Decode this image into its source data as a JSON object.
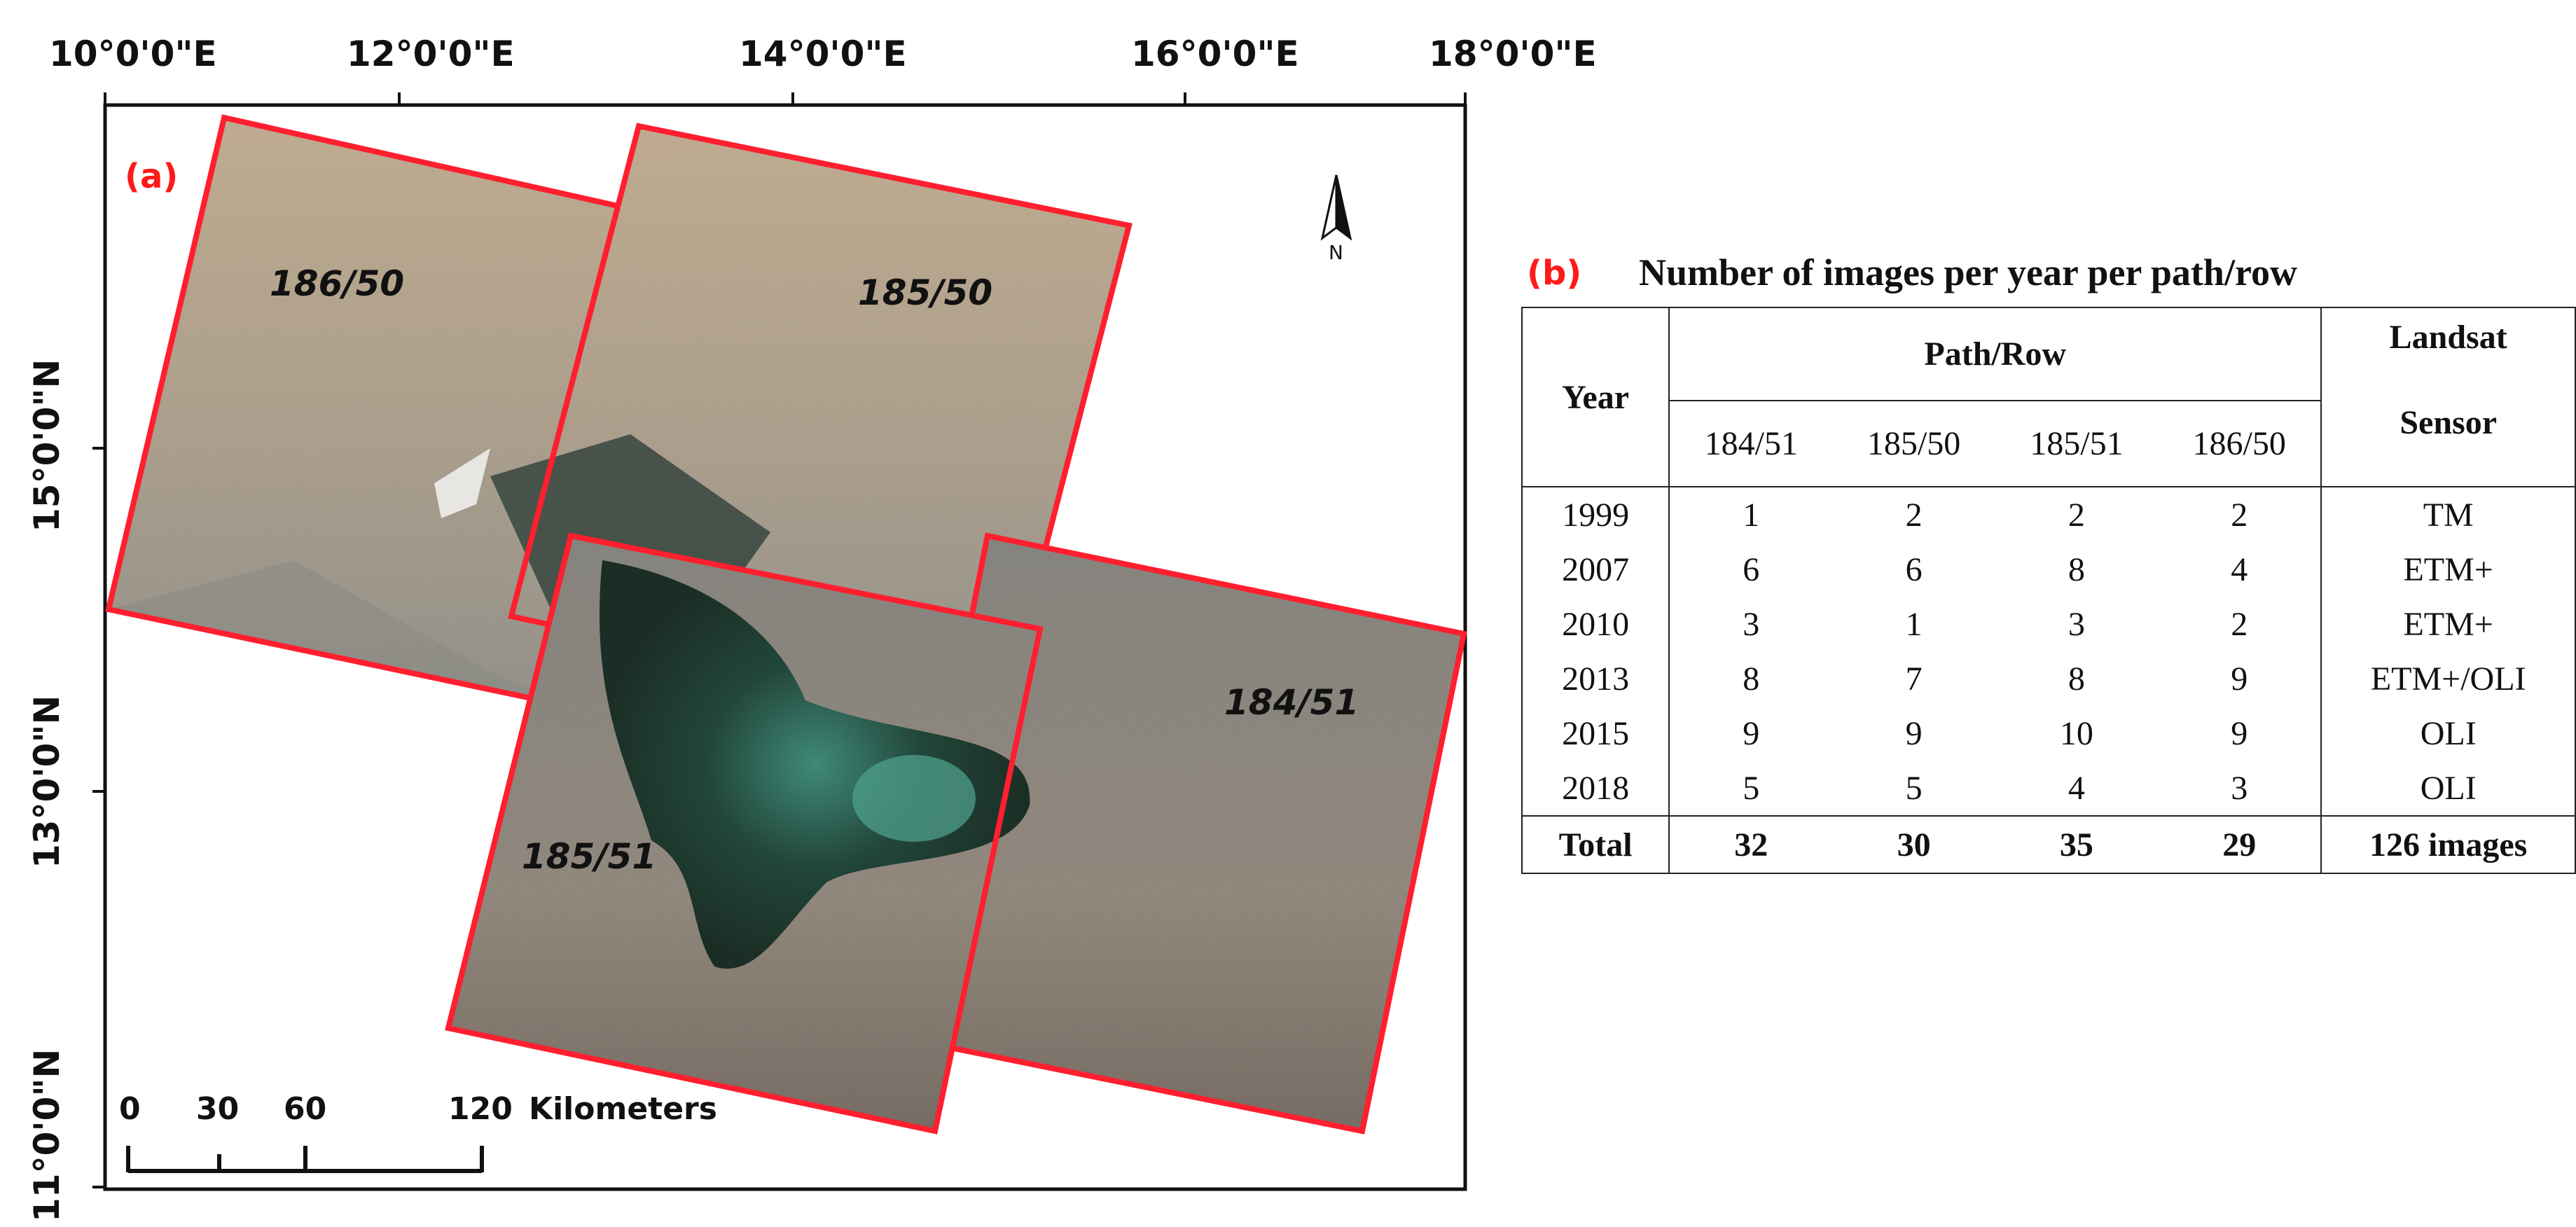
{
  "panel_a": {
    "label": "(a)",
    "lon_ticks": [
      "10°0'0\"E",
      "12°0'0\"E",
      "14°0'0\"E",
      "16°0'0\"E",
      "18°0'0\"E"
    ],
    "lat_ticks": [
      "15°0'0\"N",
      "13°0'0\"N",
      "11°0'0\"N"
    ],
    "scenes": [
      {
        "label": "186/50"
      },
      {
        "label": "185/50"
      },
      {
        "label": "185/51"
      },
      {
        "label": "184/51"
      }
    ],
    "north_arrow": {
      "icon": "north-arrow-icon",
      "label": "N"
    },
    "scale_bar": {
      "ticks": [
        "0",
        "30",
        "60",
        "120"
      ],
      "unit": "Kilometers"
    },
    "colors": {
      "scene_outline": "#ff1f2e",
      "panel_label": "#ff1a1a"
    }
  },
  "panel_b": {
    "label": "(b)",
    "title": "Number of images per year per path/row",
    "header": {
      "year": "Year",
      "path_row": "Path/Row",
      "landsat": "Landsat",
      "sensor": "Sensor",
      "columns": [
        "184/51",
        "185/50",
        "185/51",
        "186/50"
      ]
    },
    "rows": [
      {
        "year": "1999",
        "values": [
          "1",
          "2",
          "2",
          "2"
        ],
        "sensor": "TM"
      },
      {
        "year": "2007",
        "values": [
          "6",
          "6",
          "8",
          "4"
        ],
        "sensor": "ETM+"
      },
      {
        "year": "2010",
        "values": [
          "3",
          "1",
          "3",
          "2"
        ],
        "sensor": "ETM+"
      },
      {
        "year": "2013",
        "values": [
          "8",
          "7",
          "8",
          "9"
        ],
        "sensor": "ETM+/OLI"
      },
      {
        "year": "2015",
        "values": [
          "9",
          "9",
          "10",
          "9"
        ],
        "sensor": "OLI"
      },
      {
        "year": "2018",
        "values": [
          "5",
          "5",
          "4",
          "3"
        ],
        "sensor": "OLI"
      }
    ],
    "total": {
      "label": "Total",
      "values": [
        "32",
        "30",
        "35",
        "29"
      ],
      "sensor": "126 images"
    }
  }
}
